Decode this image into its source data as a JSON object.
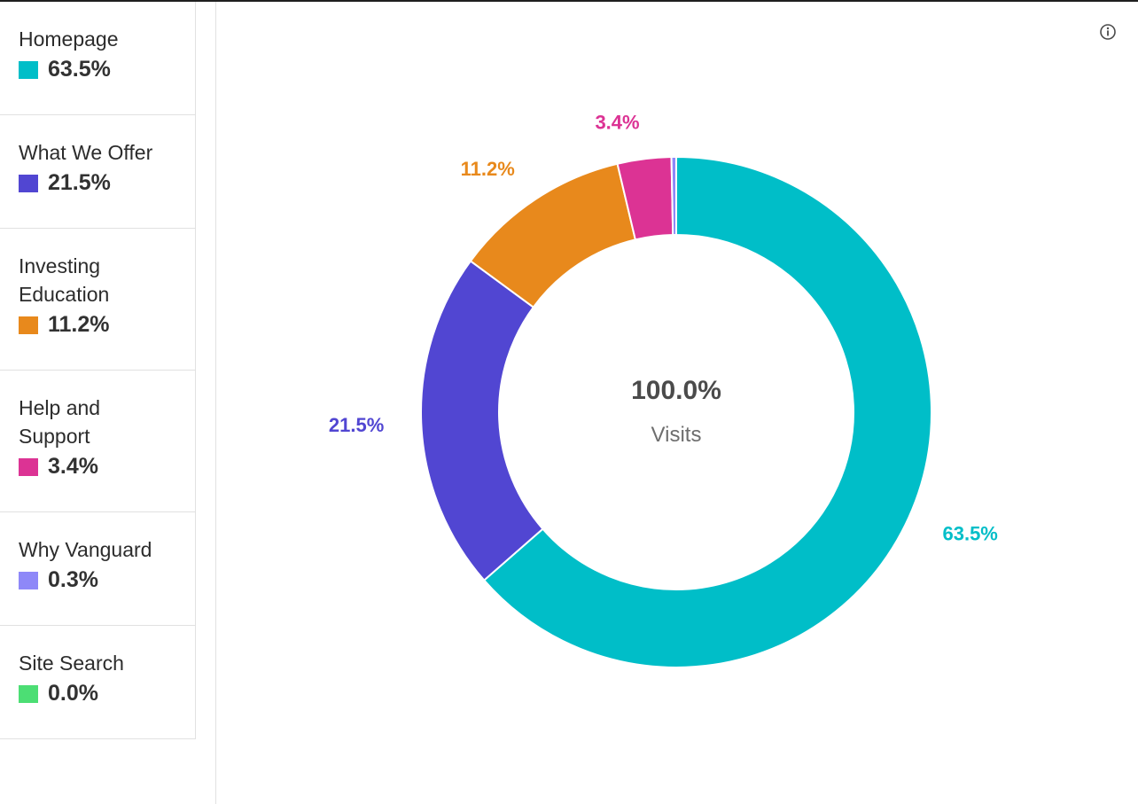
{
  "chart_data": {
    "type": "pie",
    "donut": true,
    "center_value": "100.0%",
    "center_label": "Visits",
    "slices": [
      {
        "label": "Homepage",
        "value": 63.5,
        "value_label": "63.5%",
        "color": "#00bec8"
      },
      {
        "label": "What We Offer",
        "value": 21.5,
        "value_label": "21.5%",
        "color": "#5146d2"
      },
      {
        "label": "Investing Education",
        "value": 11.2,
        "value_label": "11.2%",
        "color": "#e8891c"
      },
      {
        "label": "Help and Support",
        "value": 3.4,
        "value_label": "3.4%",
        "color": "#dc3394"
      },
      {
        "label": "Why Vanguard",
        "value": 0.3,
        "value_label": "0.3%",
        "color": "#8e88f8"
      },
      {
        "label": "Site Search",
        "value": 0.0,
        "value_label": "0.0%",
        "color": "#4cde74"
      }
    ],
    "legend_position": "left"
  },
  "legend": {
    "items": [
      {
        "label": "Homepage",
        "value": "63.5%",
        "color": "#00bec8"
      },
      {
        "label": "What We Offer",
        "value": "21.5%",
        "color": "#5146d2"
      },
      {
        "label": "Investing\nEducation",
        "value": "11.2%",
        "color": "#e8891c"
      },
      {
        "label": "Help and\nSupport",
        "value": "3.4%",
        "color": "#dc3394"
      },
      {
        "label": "Why Vanguard",
        "value": "0.3%",
        "color": "#8e88f8"
      },
      {
        "label": "Site Search",
        "value": "0.0%",
        "color": "#4cde74"
      }
    ]
  },
  "icons": {
    "info": "info-icon"
  }
}
